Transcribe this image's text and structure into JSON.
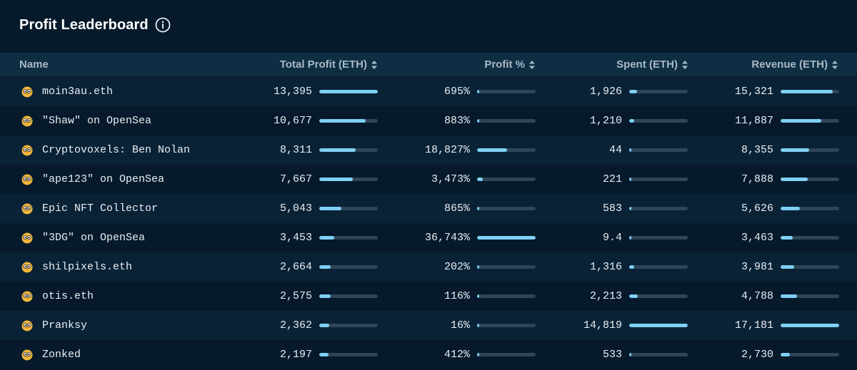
{
  "leaderboard": {
    "title": "Profit Leaderboard",
    "info_icon": "info-circle-icon",
    "columns": {
      "name": "Name",
      "total_profit": "Total Profit (ETH)",
      "profit_pct": "Profit %",
      "spent": "Spent (ETH)",
      "revenue": "Revenue (ETH)"
    },
    "sort_icon": "sort-up-down-icon",
    "avatar_icon": "owl-avatar-icon",
    "colors": {
      "background": "#061a2b",
      "header_bg": "#0f2e44",
      "row_alt_bg": "#0a2236",
      "bar_track": "#2f4658",
      "bar_fill": "#7fd0f5",
      "avatar": "#f0b73a"
    },
    "rows": [
      {
        "name": "moin3au.eth",
        "total_profit": "13,395",
        "profit_pct": "695%",
        "spent": "1,926",
        "revenue": "15,321",
        "profit_frac": 1.0,
        "pct_frac": 0.019,
        "spent_frac": 0.13,
        "revenue_frac": 0.89
      },
      {
        "name": "\"Shaw\" on OpenSea",
        "total_profit": "10,677",
        "profit_pct": "883%",
        "spent": "1,210",
        "revenue": "11,887",
        "profit_frac": 0.797,
        "pct_frac": 0.024,
        "spent_frac": 0.082,
        "revenue_frac": 0.69
      },
      {
        "name": "Cryptovoxels: Ben Nolan",
        "total_profit": "8,311",
        "profit_pct": "18,827%",
        "spent": "44",
        "revenue": "8,355",
        "profit_frac": 0.62,
        "pct_frac": 0.512,
        "spent_frac": 0.003,
        "revenue_frac": 0.486
      },
      {
        "name": "\"ape123\" on OpenSea",
        "total_profit": "7,667",
        "profit_pct": "3,473%",
        "spent": "221",
        "revenue": "7,888",
        "profit_frac": 0.572,
        "pct_frac": 0.095,
        "spent_frac": 0.015,
        "revenue_frac": 0.459
      },
      {
        "name": "Epic NFT Collector",
        "total_profit": "5,043",
        "profit_pct": "865%",
        "spent": "583",
        "revenue": "5,626",
        "profit_frac": 0.376,
        "pct_frac": 0.024,
        "spent_frac": 0.039,
        "revenue_frac": 0.327
      },
      {
        "name": "\"3DG\" on OpenSea",
        "total_profit": "3,453",
        "profit_pct": "36,743%",
        "spent": "9.4",
        "revenue": "3,463",
        "profit_frac": 0.258,
        "pct_frac": 1.0,
        "spent_frac": 0.001,
        "revenue_frac": 0.202
      },
      {
        "name": "shilpixels.eth",
        "total_profit": "2,664",
        "profit_pct": "202%",
        "spent": "1,316",
        "revenue": "3,981",
        "profit_frac": 0.199,
        "pct_frac": 0.006,
        "spent_frac": 0.089,
        "revenue_frac": 0.232
      },
      {
        "name": "otis.eth",
        "total_profit": "2,575",
        "profit_pct": "116%",
        "spent": "2,213",
        "revenue": "4,788",
        "profit_frac": 0.192,
        "pct_frac": 0.003,
        "spent_frac": 0.149,
        "revenue_frac": 0.279
      },
      {
        "name": "Pranksy",
        "total_profit": "2,362",
        "profit_pct": "16%",
        "spent": "14,819",
        "revenue": "17,181",
        "profit_frac": 0.176,
        "pct_frac": 0.0,
        "spent_frac": 1.0,
        "revenue_frac": 1.0
      },
      {
        "name": "Zonked",
        "total_profit": "2,197",
        "profit_pct": "412%",
        "spent": "533",
        "revenue": "2,730",
        "profit_frac": 0.164,
        "pct_frac": 0.011,
        "spent_frac": 0.036,
        "revenue_frac": 0.159
      }
    ]
  }
}
